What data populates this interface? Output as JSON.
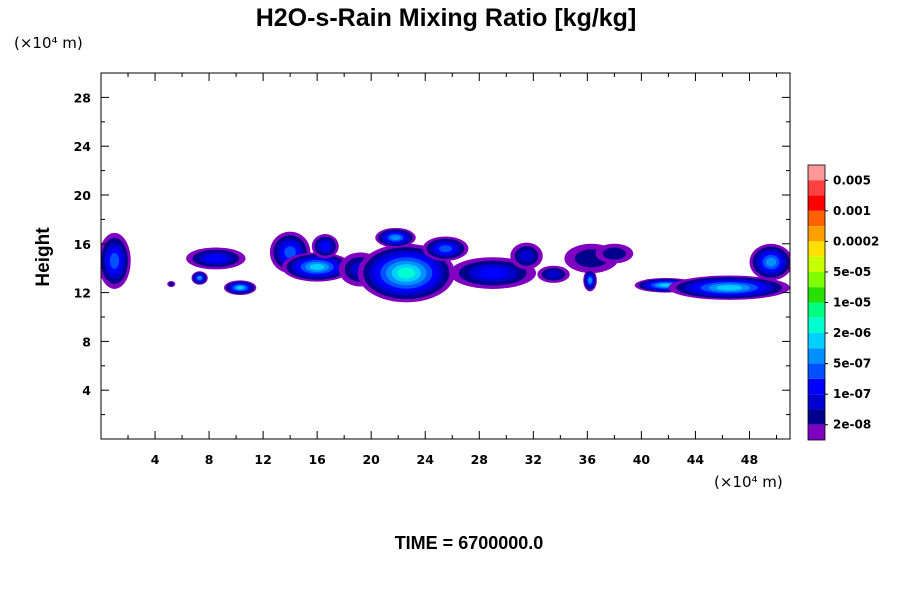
{
  "chart_data": {
    "type": "heatmap",
    "title": "H2O-s-Rain Mixing Ratio [kg/kg]",
    "xlabel": "",
    "ylabel": "Height",
    "x_unit_label": "(×10⁴ m)",
    "y_unit_label": "(×10⁴ m)",
    "xlim": [
      0,
      51
    ],
    "ylim": [
      0,
      30
    ],
    "x_ticks": [
      4,
      8,
      12,
      16,
      20,
      24,
      28,
      32,
      36,
      40,
      44,
      48
    ],
    "x_tick_labels": [
      "4",
      "8",
      "12",
      "16",
      "20",
      "24",
      "28",
      "32",
      "36",
      "40",
      "44",
      "48"
    ],
    "y_ticks": [
      4,
      8,
      12,
      16,
      20,
      24,
      28
    ],
    "y_tick_labels": [
      "4",
      "8",
      "12",
      "16",
      "20",
      "24",
      "28"
    ],
    "legend_labels": [
      "0.005",
      "0.001",
      "0.0002",
      "5e-05",
      "1e-05",
      "2e-06",
      "5e-07",
      "1e-07",
      "2e-08"
    ],
    "legend_colors": [
      "#ff9999",
      "#ff4040",
      "#ff0000",
      "#ff6000",
      "#ffa000",
      "#ffe000",
      "#c8ff00",
      "#80ff00",
      "#28e000",
      "#00ff80",
      "#00ffd0",
      "#00d0ff",
      "#0090ff",
      "#0050ff",
      "#0000ff",
      "#0000d0",
      "#00008c",
      "#8000c0"
    ],
    "clouds": [
      {
        "x": 1.0,
        "y": 14.6,
        "rx": 1.2,
        "ry": 2.3,
        "level": 4
      },
      {
        "x": 5.2,
        "y": 12.7,
        "rx": 0.3,
        "ry": 0.25,
        "level": 1
      },
      {
        "x": 7.3,
        "y": 13.2,
        "rx": 0.6,
        "ry": 0.55,
        "level": 5
      },
      {
        "x": 8.5,
        "y": 14.8,
        "rx": 2.2,
        "ry": 0.9,
        "level": 3
      },
      {
        "x": 10.3,
        "y": 12.4,
        "rx": 1.2,
        "ry": 0.6,
        "level": 6
      },
      {
        "x": 14.0,
        "y": 15.3,
        "rx": 1.5,
        "ry": 1.7,
        "level": 4
      },
      {
        "x": 16.0,
        "y": 14.1,
        "rx": 2.6,
        "ry": 1.2,
        "level": 6
      },
      {
        "x": 16.6,
        "y": 15.8,
        "rx": 1.0,
        "ry": 1.0,
        "level": 3
      },
      {
        "x": 19.2,
        "y": 13.9,
        "rx": 1.6,
        "ry": 1.4,
        "level": 2
      },
      {
        "x": 22.6,
        "y": 13.6,
        "rx": 3.6,
        "ry": 2.4,
        "level": 7
      },
      {
        "x": 21.8,
        "y": 16.5,
        "rx": 1.5,
        "ry": 0.8,
        "level": 5
      },
      {
        "x": 25.5,
        "y": 15.6,
        "rx": 1.7,
        "ry": 1.0,
        "level": 4
      },
      {
        "x": 29.0,
        "y": 13.6,
        "rx": 3.2,
        "ry": 1.3,
        "level": 3
      },
      {
        "x": 31.5,
        "y": 15.0,
        "rx": 1.2,
        "ry": 1.1,
        "level": 2
      },
      {
        "x": 33.5,
        "y": 13.5,
        "rx": 1.2,
        "ry": 0.7,
        "level": 2
      },
      {
        "x": 36.3,
        "y": 14.8,
        "rx": 2.0,
        "ry": 1.2,
        "level": 1
      },
      {
        "x": 36.2,
        "y": 13.0,
        "rx": 0.5,
        "ry": 0.9,
        "level": 5
      },
      {
        "x": 38.0,
        "y": 15.2,
        "rx": 1.4,
        "ry": 0.8,
        "level": 1
      },
      {
        "x": 41.8,
        "y": 12.6,
        "rx": 2.3,
        "ry": 0.6,
        "level": 6
      },
      {
        "x": 46.5,
        "y": 12.4,
        "rx": 4.5,
        "ry": 1.0,
        "level": 6
      },
      {
        "x": 49.6,
        "y": 14.5,
        "rx": 1.6,
        "ry": 1.5,
        "level": 5
      }
    ]
  },
  "time_label": "TIME = 6700000.0"
}
